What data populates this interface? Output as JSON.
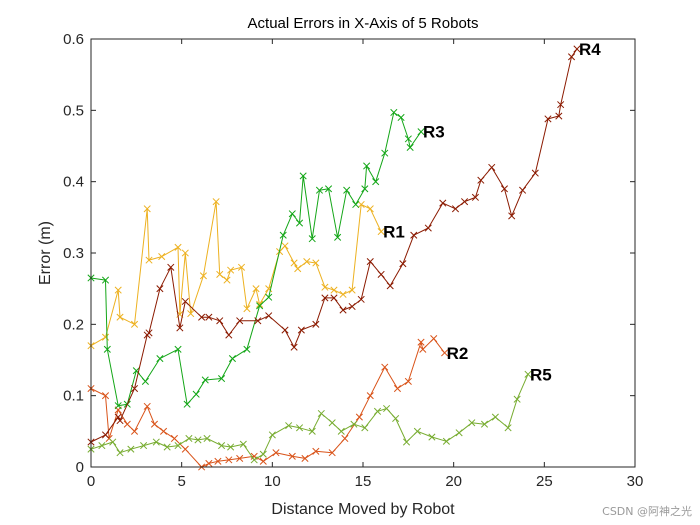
{
  "chart_data": {
    "type": "line",
    "title": "Actual Errors in X-Axis of 5 Robots",
    "xlabel": "Distance Moved by Robot",
    "ylabel": "Error (m)",
    "xlim": [
      0,
      30
    ],
    "ylim": [
      0,
      0.6
    ],
    "xticks": [
      "0",
      "5",
      "10",
      "15",
      "20",
      "25",
      "30"
    ],
    "yticks": [
      "0",
      "0.1",
      "0.2",
      "0.3",
      "0.4",
      "0.5",
      "0.6"
    ],
    "grid": false,
    "legend": "none",
    "marker": "x",
    "series": [
      {
        "name": "R1",
        "color": "#EDB120",
        "x": [
          0.0,
          0.8,
          1.5,
          1.6,
          2.4,
          3.1,
          3.2,
          3.9,
          4.8,
          4.9,
          5.2,
          5.5,
          6.2,
          6.9,
          7.1,
          7.5,
          7.7,
          8.3,
          8.6,
          9.1,
          9.3,
          9.8,
          10.4,
          10.7,
          11.2,
          11.4,
          11.9,
          12.4,
          12.9,
          13.4,
          13.9,
          14.4,
          14.9,
          15.4,
          16.0
        ],
        "y": [
          0.17,
          0.182,
          0.248,
          0.21,
          0.2,
          0.362,
          0.29,
          0.295,
          0.308,
          0.214,
          0.3,
          0.215,
          0.268,
          0.372,
          0.27,
          0.262,
          0.276,
          0.28,
          0.222,
          0.25,
          0.228,
          0.25,
          0.302,
          0.31,
          0.286,
          0.278,
          0.288,
          0.286,
          0.252,
          0.248,
          0.242,
          0.248,
          0.368,
          0.362,
          0.33
        ]
      },
      {
        "name": "R2",
        "color": "#D95319",
        "x": [
          0.0,
          0.8,
          1.0,
          1.5,
          2.0,
          2.4,
          3.1,
          3.5,
          4.0,
          4.6,
          5.2,
          6.1,
          6.5,
          7.0,
          7.6,
          8.2,
          9.0,
          9.5,
          10.2,
          11.1,
          11.8,
          12.4,
          13.3,
          14.0,
          14.8,
          15.4,
          16.2,
          16.9,
          17.5,
          18.2,
          18.3,
          18.9,
          19.5
        ],
        "y": [
          0.11,
          0.1,
          0.04,
          0.08,
          0.06,
          0.05,
          0.085,
          0.06,
          0.05,
          0.04,
          0.025,
          0.0,
          0.005,
          0.008,
          0.01,
          0.012,
          0.015,
          0.008,
          0.02,
          0.015,
          0.012,
          0.022,
          0.02,
          0.04,
          0.07,
          0.1,
          0.14,
          0.11,
          0.12,
          0.175,
          0.165,
          0.18,
          0.16
        ]
      },
      {
        "name": "R3",
        "color": "#13A617",
        "x": [
          0.0,
          0.8,
          0.9,
          1.5,
          2.0,
          2.5,
          3.0,
          3.8,
          4.8,
          5.3,
          5.8,
          6.3,
          7.2,
          7.8,
          8.6,
          9.3,
          9.8,
          10.6,
          11.1,
          11.5,
          11.7,
          12.2,
          12.6,
          13.1,
          13.6,
          14.1,
          14.6,
          15.1,
          15.2,
          15.7,
          16.2,
          16.7,
          17.1,
          17.5,
          17.6,
          18.2
        ],
        "y": [
          0.265,
          0.262,
          0.165,
          0.086,
          0.088,
          0.135,
          0.12,
          0.152,
          0.165,
          0.088,
          0.102,
          0.122,
          0.124,
          0.152,
          0.165,
          0.226,
          0.238,
          0.325,
          0.355,
          0.342,
          0.408,
          0.32,
          0.388,
          0.39,
          0.322,
          0.388,
          0.368,
          0.39,
          0.422,
          0.4,
          0.44,
          0.497,
          0.49,
          0.46,
          0.448,
          0.47
        ]
      },
      {
        "name": "R4",
        "color": "#8B1A00",
        "x": [
          0.0,
          0.8,
          1.5,
          1.6,
          2.4,
          3.1,
          3.2,
          3.8,
          4.4,
          4.9,
          5.2,
          6.1,
          6.5,
          7.1,
          7.6,
          8.2,
          9.2,
          9.8,
          10.7,
          11.2,
          11.6,
          12.4,
          12.9,
          13.4,
          13.9,
          14.4,
          14.9,
          15.4,
          16.0,
          16.5,
          17.2,
          17.8,
          18.6,
          19.4,
          20.1,
          20.6,
          21.2,
          21.5,
          22.1,
          22.8,
          23.2,
          23.8,
          24.5,
          25.2,
          25.8,
          25.9,
          26.5,
          26.8
        ],
        "y": [
          0.035,
          0.045,
          0.07,
          0.065,
          0.11,
          0.185,
          0.188,
          0.25,
          0.28,
          0.195,
          0.232,
          0.21,
          0.21,
          0.205,
          0.185,
          0.205,
          0.205,
          0.212,
          0.192,
          0.168,
          0.192,
          0.2,
          0.237,
          0.237,
          0.22,
          0.225,
          0.235,
          0.288,
          0.27,
          0.254,
          0.285,
          0.325,
          0.335,
          0.37,
          0.362,
          0.372,
          0.378,
          0.402,
          0.42,
          0.39,
          0.352,
          0.388,
          0.412,
          0.488,
          0.492,
          0.508,
          0.575,
          0.586
        ]
      },
      {
        "name": "R5",
        "color": "#77AC30",
        "x": [
          0.0,
          0.6,
          1.2,
          1.6,
          2.2,
          2.9,
          3.6,
          4.2,
          4.8,
          5.4,
          5.9,
          6.4,
          7.2,
          7.7,
          8.4,
          9.0,
          9.5,
          10.0,
          10.9,
          11.5,
          12.2,
          12.7,
          13.3,
          13.8,
          14.5,
          15.1,
          15.8,
          16.3,
          16.8,
          17.4,
          18.0,
          18.8,
          19.6,
          20.3,
          21.0,
          21.7,
          22.3,
          23.0,
          23.5,
          24.1
        ],
        "y": [
          0.025,
          0.03,
          0.035,
          0.02,
          0.025,
          0.03,
          0.035,
          0.028,
          0.03,
          0.04,
          0.038,
          0.04,
          0.03,
          0.028,
          0.032,
          0.01,
          0.018,
          0.045,
          0.058,
          0.055,
          0.05,
          0.075,
          0.062,
          0.05,
          0.06,
          0.055,
          0.078,
          0.082,
          0.068,
          0.035,
          0.05,
          0.042,
          0.036,
          0.048,
          0.062,
          0.06,
          0.07,
          0.055,
          0.095,
          0.13
        ]
      }
    ]
  },
  "watermark": "CSDN @阿神之光"
}
